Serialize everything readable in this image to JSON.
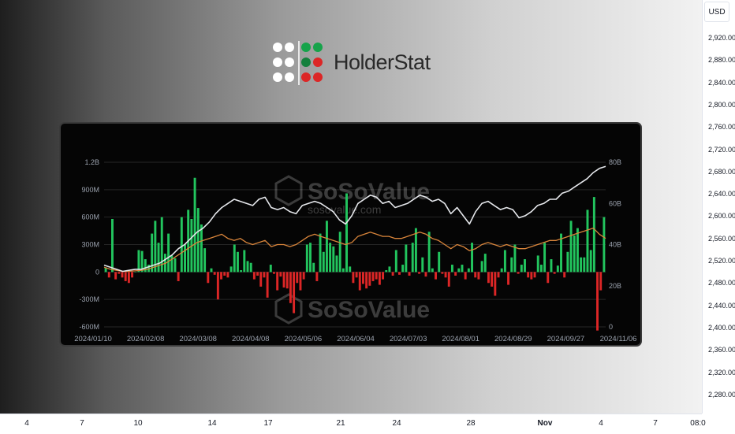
{
  "price_axis": {
    "currency": "USD",
    "ticks": [
      "2,920.00",
      "2,880.00",
      "2,840.00",
      "2,800.00",
      "2,760.00",
      "2,720.00",
      "2,680.00",
      "2,640.00",
      "2,600.00",
      "2,560.00",
      "2,520.00",
      "2,480.00",
      "2,440.00",
      "2,400.00",
      "2,360.00",
      "2,320.00",
      "2,280.00"
    ]
  },
  "time_axis": {
    "ticks": [
      {
        "label": "4",
        "bold": false
      },
      {
        "label": "7",
        "bold": false
      },
      {
        "label": "10",
        "bold": false
      },
      {
        "label": "14",
        "bold": false
      },
      {
        "label": "17",
        "bold": false
      },
      {
        "label": "21",
        "bold": false
      },
      {
        "label": "24",
        "bold": false
      },
      {
        "label": "28",
        "bold": false
      },
      {
        "label": "Nov",
        "bold": true
      },
      {
        "label": "4",
        "bold": false
      },
      {
        "label": "7",
        "bold": false
      },
      {
        "label": "08:0",
        "bold": false
      }
    ]
  },
  "logo": {
    "text": "HolderStat"
  },
  "watermark": {
    "text": "SoSoValue",
    "url": "sosovalue.com"
  },
  "colors": {
    "inflow": "#22c55e",
    "outflow": "#dc2626",
    "price_line": "#e5e7eb",
    "aum_line": "#d9853b"
  },
  "chart_data": {
    "type": "bar",
    "x_labels": [
      "2024/01/10",
      "2024/02/08",
      "2024/03/08",
      "2024/04/08",
      "2024/05/06",
      "2024/06/04",
      "2024/07/03",
      "2024/08/01",
      "2024/08/29",
      "2024/09/27",
      "2024/11/06"
    ],
    "left_axis": {
      "ticks": [
        "1.2B",
        "900M",
        "600M",
        "300M",
        "0",
        "-300M",
        "-600M"
      ],
      "range": [
        -600,
        1200
      ],
      "unit": "M"
    },
    "right_axis": {
      "ticks": [
        "80B",
        "60B",
        "40B",
        "20B",
        "0"
      ],
      "range": [
        0,
        80
      ],
      "unit": "B"
    },
    "series": [
      {
        "kind": "bar",
        "values": [
          50,
          -60,
          580,
          -80,
          -20,
          -60,
          -100,
          -120,
          -60,
          0,
          240,
          230,
          140,
          80,
          420,
          560,
          320,
          600,
          200,
          420,
          180,
          150,
          -100,
          600,
          300,
          680,
          580,
          1030,
          700,
          520,
          260,
          -120,
          40,
          -30,
          -300,
          -80,
          -40,
          -60,
          60,
          300,
          220,
          20,
          240,
          120,
          100,
          -80,
          -40,
          -160,
          -60,
          -280,
          80,
          -20,
          -200,
          -50,
          -170,
          -180,
          -340,
          -450,
          -120,
          -200,
          -80,
          300,
          320,
          100,
          -100,
          420,
          220,
          560,
          320,
          280,
          180,
          440,
          40,
          860,
          60,
          -120,
          -60,
          -200,
          -130,
          -180,
          -150,
          -100,
          -80,
          -140,
          -80,
          20,
          60,
          -40,
          240,
          -30,
          80,
          300,
          -40,
          320,
          480,
          -20,
          160,
          -50,
          440,
          40,
          -80,
          220,
          -20,
          -60,
          -160,
          80,
          -40,
          40,
          80,
          -80,
          40,
          320,
          -60,
          -80,
          120,
          200,
          -120,
          -160,
          -260,
          -60,
          40,
          240,
          -140,
          160,
          300,
          -20,
          80,
          140,
          -60,
          -80,
          -60,
          180,
          80,
          320,
          -120,
          140,
          -20,
          70,
          420,
          -60,
          220,
          560,
          400,
          480,
          160,
          160,
          680,
          240,
          820,
          -640,
          -200,
          600
        ]
      },
      {
        "kind": "line",
        "name": "price",
        "axis": "right",
        "values": [
          30,
          29,
          28,
          27,
          27.5,
          28,
          28,
          29,
          30,
          31,
          33,
          35,
          38,
          40,
          43,
          46,
          48,
          51,
          55,
          58,
          60,
          62,
          61,
          60,
          59,
          62,
          63,
          58,
          57,
          58,
          56,
          55,
          59,
          60,
          61,
          60,
          58,
          56,
          52,
          50,
          54,
          60,
          62,
          64,
          63,
          60,
          61,
          58,
          59,
          60,
          62,
          64,
          63,
          61,
          62,
          60,
          55,
          58,
          54,
          50,
          56,
          60,
          61,
          59,
          57,
          58,
          57,
          53,
          54,
          56,
          59,
          60,
          62,
          62,
          65,
          66,
          68,
          70,
          72,
          75,
          77,
          78
        ]
      },
      {
        "kind": "line",
        "name": "aum",
        "axis": "right",
        "values": [
          29,
          28,
          27.5,
          27,
          27,
          27.2,
          27.5,
          28,
          29,
          30,
          31,
          33,
          35,
          37,
          39,
          41,
          42,
          43,
          44,
          45,
          43,
          42,
          43,
          41,
          40,
          41,
          42,
          39,
          40,
          40,
          39,
          40,
          42,
          44,
          45,
          44,
          43,
          42,
          41,
          40,
          41,
          44,
          45,
          46,
          45,
          44,
          44,
          43,
          43,
          44,
          45,
          46,
          45,
          43,
          42,
          40,
          38,
          40,
          39,
          37,
          38,
          40,
          41,
          40,
          39,
          40,
          39,
          38,
          38,
          39,
          40,
          41,
          42,
          42,
          43,
          44,
          45,
          46,
          47,
          48,
          45,
          43
        ]
      }
    ]
  }
}
